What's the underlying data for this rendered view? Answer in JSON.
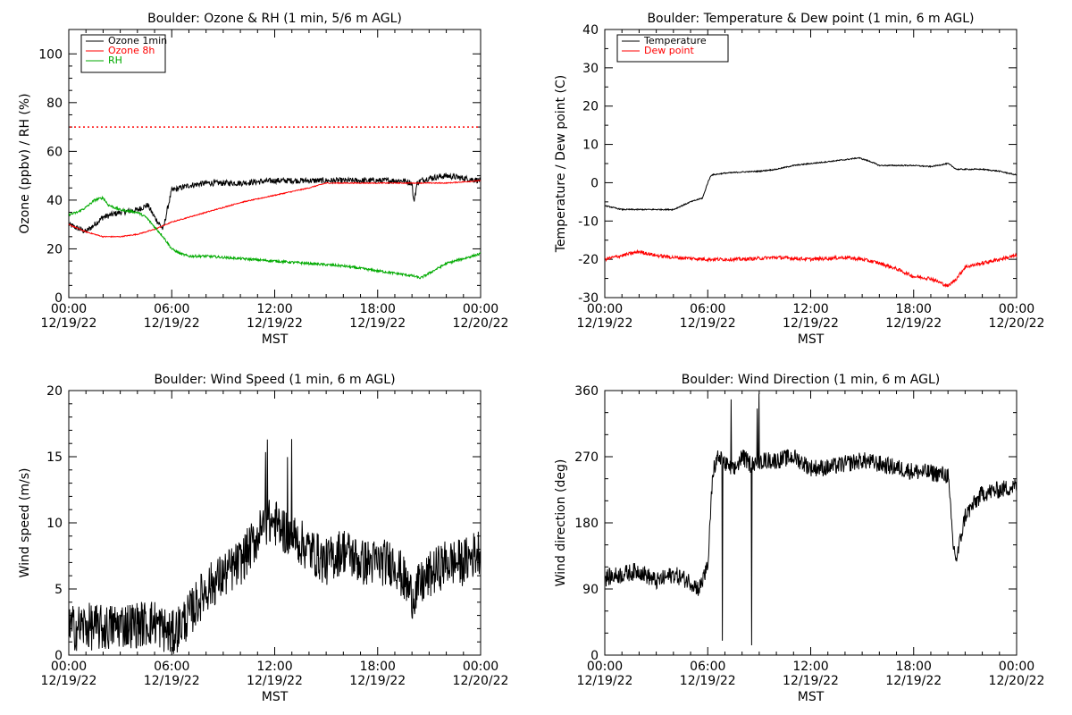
{
  "chart_data": [
    {
      "type": "line",
      "title": "Boulder: Ozone & RH (1 min, 5/6 m AGL)",
      "xlabel": "MST",
      "ylabel": "Ozone (ppbv) / RH (%)",
      "xlim": [
        "2022-12-19 00:00",
        "2022-12-20 00:00"
      ],
      "xticks": [
        [
          "00:00",
          "12/19/22"
        ],
        [
          "06:00",
          "12/19/22"
        ],
        [
          "12:00",
          "12/19/22"
        ],
        [
          "18:00",
          "12/19/22"
        ],
        [
          "00:00",
          "12/20/22"
        ]
      ],
      "ylim": [
        0,
        110
      ],
      "yticks": [
        0,
        20,
        40,
        60,
        80,
        100
      ],
      "grid": false,
      "legend": "top-left",
      "reference_lines": [
        {
          "y": 70,
          "color": "#ff0000",
          "style": "dotted"
        }
      ],
      "series": [
        {
          "name": "Ozone 1min",
          "color": "#000000",
          "noise": 1.2,
          "x": [
            0,
            1,
            2,
            3,
            4,
            4.6,
            5,
            5.5,
            5.8,
            6,
            6.5,
            7,
            8,
            9,
            10,
            12,
            14,
            16,
            18,
            19.5,
            20,
            20.1,
            20.3,
            20.5,
            21,
            22,
            23,
            24
          ],
          "y": [
            30,
            27,
            33,
            35,
            36,
            38,
            33,
            28,
            38,
            44,
            45,
            46,
            47,
            47,
            47,
            48,
            48,
            48,
            48,
            48,
            47,
            39,
            47,
            48,
            49,
            50,
            49,
            48
          ]
        },
        {
          "name": "Ozone 8h",
          "color": "#ff0000",
          "noise": 0.2,
          "x": [
            0,
            1,
            2,
            3,
            4,
            5,
            6,
            7,
            8,
            10,
            12,
            14,
            15,
            16,
            18,
            20,
            22,
            24
          ],
          "y": [
            30,
            27,
            25,
            25,
            26,
            28,
            31,
            33,
            35,
            39,
            42,
            45,
            47,
            47,
            47,
            47,
            47,
            48
          ]
        },
        {
          "name": "RH",
          "color": "#00aa00",
          "noise": 0.5,
          "x": [
            0,
            0.5,
            1.0,
            1.5,
            2.0,
            2.3,
            3.0,
            4.0,
            4.5,
            5.0,
            5.5,
            6.0,
            6.5,
            7.0,
            8.0,
            10.0,
            12.0,
            14.0,
            16.0,
            18.0,
            19.0,
            20.0,
            20.5,
            21.0,
            22.0,
            23.0,
            24.0
          ],
          "y": [
            34,
            35,
            37,
            40,
            41,
            38,
            36,
            35,
            33,
            29,
            25,
            20,
            18,
            17,
            17,
            16,
            15,
            14,
            13,
            11,
            10,
            9,
            8,
            10,
            14,
            16,
            18
          ]
        }
      ]
    },
    {
      "type": "line",
      "title": "Boulder: Temperature & Dew point (1 min, 6 m AGL)",
      "xlabel": "MST",
      "ylabel": "Temperature / Dew point (C)",
      "xlim": [
        "2022-12-19 00:00",
        "2022-12-20 00:00"
      ],
      "xticks": [
        [
          "00:00",
          "12/19/22"
        ],
        [
          "06:00",
          "12/19/22"
        ],
        [
          "12:00",
          "12/19/22"
        ],
        [
          "18:00",
          "12/19/22"
        ],
        [
          "00:00",
          "12/20/22"
        ]
      ],
      "ylim": [
        -30,
        40
      ],
      "yticks": [
        -30,
        -20,
        -10,
        0,
        10,
        20,
        30,
        40
      ],
      "grid": false,
      "legend": "top-left",
      "series": [
        {
          "name": "Temperature",
          "color": "#000000",
          "noise": 0.15,
          "x": [
            0,
            1,
            2,
            3,
            4,
            5,
            5.7,
            6.0,
            6.2,
            7,
            8,
            9,
            10,
            11,
            12,
            13,
            14,
            14.8,
            15.5,
            16,
            17,
            18,
            19,
            20,
            20.5,
            21,
            22,
            23,
            24
          ],
          "y": [
            -6,
            -7,
            -7,
            -7,
            -7,
            -5,
            -4,
            0,
            2,
            2.5,
            2.8,
            3,
            3.5,
            4.5,
            5,
            5.5,
            6,
            6.5,
            5.5,
            4.5,
            4.5,
            4.5,
            4.2,
            5,
            3.5,
            3.5,
            3.5,
            3,
            2
          ]
        },
        {
          "name": "Dew point",
          "color": "#ff0000",
          "noise": 0.45,
          "x": [
            0,
            1,
            2,
            3,
            4,
            6,
            8,
            10,
            12,
            14,
            15,
            16,
            17,
            18,
            19,
            19.5,
            20,
            20.5,
            21,
            22,
            23,
            24
          ],
          "y": [
            -20,
            -19,
            -18,
            -19,
            -19.5,
            -20,
            -20,
            -19.5,
            -20,
            -19.5,
            -20,
            -21,
            -22.5,
            -24.5,
            -25,
            -26,
            -27,
            -25,
            -22,
            -21,
            -20,
            -19
          ]
        }
      ]
    },
    {
      "type": "line",
      "title": "Boulder: Wind Speed (1 min, 6 m AGL)",
      "xlabel": "MST",
      "ylabel": "Wind speed (m/s)",
      "xlim": [
        "2022-12-19 00:00",
        "2022-12-20 00:00"
      ],
      "xticks": [
        [
          "00:00",
          "12/19/22"
        ],
        [
          "06:00",
          "12/19/22"
        ],
        [
          "12:00",
          "12/19/22"
        ],
        [
          "18:00",
          "12/19/22"
        ],
        [
          "00:00",
          "12/20/22"
        ]
      ],
      "ylim": [
        0,
        20
      ],
      "yticks": [
        0,
        5,
        10,
        15,
        20
      ],
      "grid": false,
      "series": [
        {
          "name": "Wind speed",
          "color": "#000000",
          "noise": 1.8,
          "x": [
            0,
            1,
            2,
            3,
            4,
            5,
            6,
            7,
            7.5,
            8,
            9,
            10,
            11,
            11.5,
            12,
            13,
            14,
            15,
            16,
            17,
            18,
            19,
            20,
            21,
            22,
            23,
            24
          ],
          "y": [
            2,
            2.2,
            2,
            2.3,
            2.3,
            2.5,
            1.5,
            3,
            4,
            5,
            6,
            7,
            9,
            10,
            10,
            9,
            8,
            7,
            8,
            7,
            7,
            7,
            4.5,
            6,
            7,
            7,
            8
          ]
        }
      ]
    },
    {
      "type": "line",
      "title": "Boulder: Wind Direction (1 min, 6 m AGL)",
      "xlabel": "MST",
      "ylabel": "Wind direction (deg)",
      "xlim": [
        "2022-12-19 00:00",
        "2022-12-20 00:00"
      ],
      "xticks": [
        [
          "00:00",
          "12/19/22"
        ],
        [
          "06:00",
          "12/19/22"
        ],
        [
          "12:00",
          "12/19/22"
        ],
        [
          "18:00",
          "12/19/22"
        ],
        [
          "00:00",
          "12/20/22"
        ]
      ],
      "ylim": [
        0,
        360
      ],
      "yticks": [
        0,
        90,
        180,
        270,
        360
      ],
      "grid": false,
      "series": [
        {
          "name": "Wind direction",
          "color": "#000000",
          "noise": 12,
          "x": [
            0,
            1,
            2,
            3,
            4,
            5,
            5.5,
            6.0,
            6.3,
            6.6,
            7,
            7.5,
            8,
            8.5,
            9,
            10,
            11,
            12,
            13,
            14,
            15,
            16,
            17,
            18,
            19,
            20,
            20.3,
            20.5,
            21,
            22,
            23,
            24
          ],
          "y": [
            105,
            110,
            115,
            100,
            110,
            100,
            90,
            120,
            250,
            270,
            260,
            250,
            270,
            260,
            265,
            265,
            270,
            255,
            255,
            260,
            265,
            260,
            255,
            250,
            248,
            245,
            150,
            130,
            190,
            220,
            225,
            230
          ]
        }
      ]
    }
  ]
}
